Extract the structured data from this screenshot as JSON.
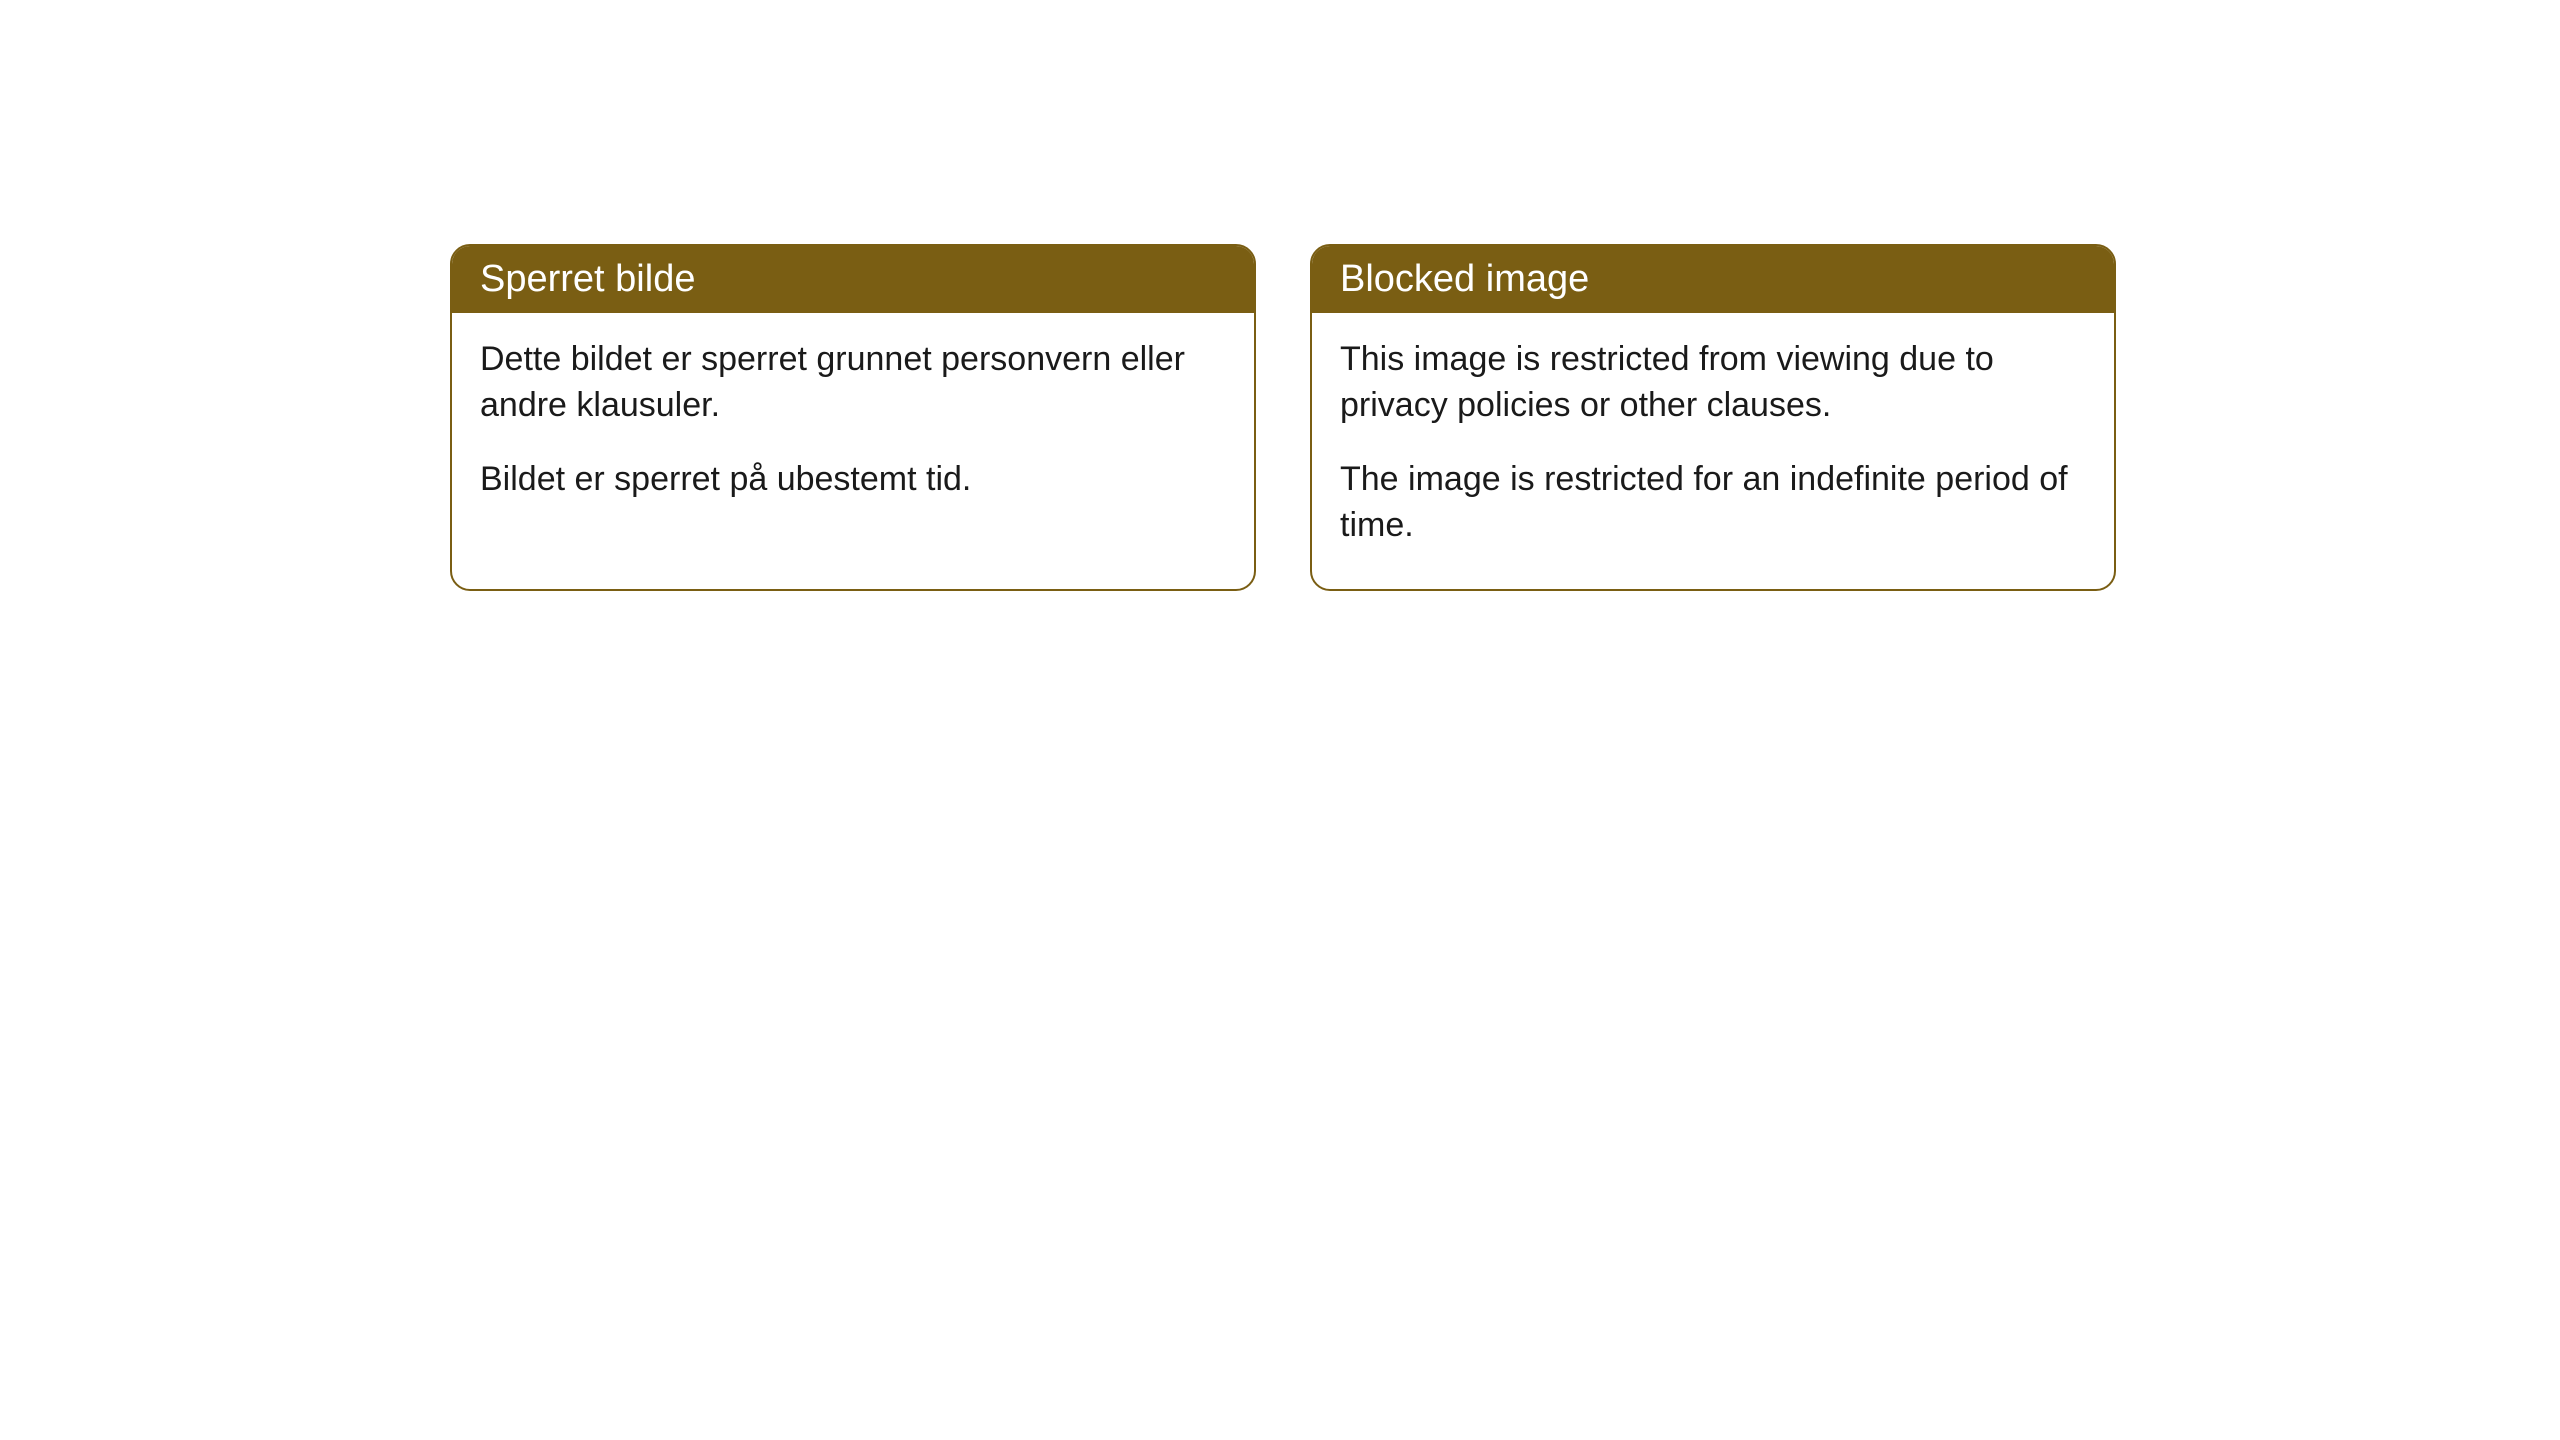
{
  "cards": [
    {
      "title": "Sperret bilde",
      "paragraph1": "Dette bildet er sperret grunnet personvern eller andre klausuler.",
      "paragraph2": "Bildet er sperret på ubestemt tid."
    },
    {
      "title": "Blocked image",
      "paragraph1": "This image is restricted from viewing due to privacy policies or other clauses.",
      "paragraph2": "The image is restricted for an indefinite period of time."
    }
  ],
  "styling": {
    "header_background": "#7a5e13",
    "header_text_color": "#ffffff",
    "border_color": "#7a5e13",
    "body_background": "#ffffff",
    "body_text_color": "#1a1a1a",
    "border_radius": 20,
    "header_font_size": 38,
    "body_font_size": 34
  }
}
